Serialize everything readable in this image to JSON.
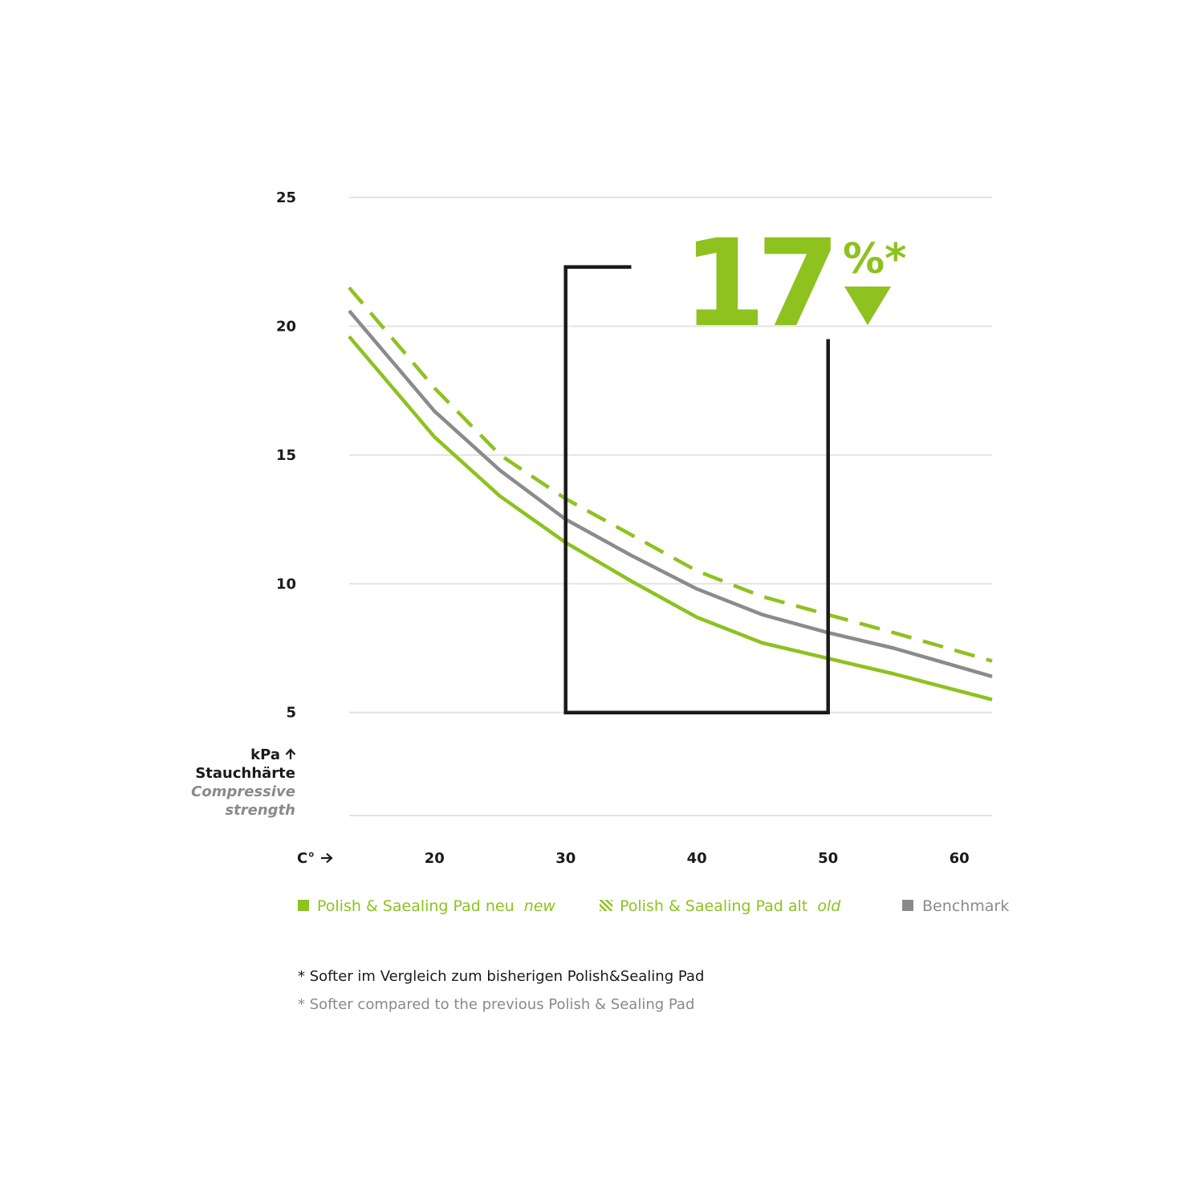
{
  "colors": {
    "green": "#8dc21f",
    "gray": "#8a8b8b",
    "black": "#1a1a1a",
    "grid": "#e3e3e3"
  },
  "chart_data": {
    "type": "line",
    "x_axis": {
      "label": "C°",
      "ticks": [
        20,
        30,
        40,
        50,
        60
      ],
      "range": [
        13.5,
        62.5
      ]
    },
    "y_axis": {
      "unit_label": "kPa",
      "label_de": "Stauchhärte",
      "label_en_line1": "Compressive",
      "label_en_line2": "strength",
      "ticks": [
        5,
        10,
        15,
        20,
        25
      ],
      "range": [
        1,
        25
      ]
    },
    "grid": true,
    "series": [
      {
        "name": "Polish & Saealing Pad neu",
        "name_suffix": "new",
        "style": "solid",
        "color": "#8dc21f",
        "x": [
          13.5,
          20,
          25,
          30,
          35,
          40,
          45,
          50,
          55,
          62.5
        ],
        "y": [
          19.6,
          15.7,
          13.4,
          11.6,
          10.1,
          8.7,
          7.7,
          7.1,
          6.5,
          5.5
        ]
      },
      {
        "name": "Polish & Saealing Pad alt",
        "name_suffix": "old",
        "style": "dashed",
        "color": "#8dc21f",
        "x": [
          13.5,
          20,
          25,
          30,
          35,
          40,
          45,
          50,
          55,
          62.5
        ],
        "y": [
          21.5,
          17.6,
          15.0,
          13.3,
          11.9,
          10.5,
          9.5,
          8.8,
          8.1,
          7.0
        ]
      },
      {
        "name": "Benchmark",
        "style": "solid",
        "color": "#8a8b8b",
        "x": [
          13.5,
          20,
          25,
          30,
          35,
          40,
          45,
          50,
          55,
          62.5
        ],
        "y": [
          20.6,
          16.7,
          14.4,
          12.5,
          11.1,
          9.8,
          8.8,
          8.1,
          7.5,
          6.4
        ]
      }
    ],
    "annotation": {
      "big_number": "17",
      "percent_text": "%*",
      "direction": "down",
      "bracket": {
        "x_start": 30,
        "x_end": 50,
        "y_bottom": 5,
        "y_top_left": 22.3,
        "y_top_right": 19.5,
        "x_top_left_end": 35
      }
    }
  },
  "legend": [
    {
      "label": "Polish & Saealing Pad neu",
      "suffix": "new",
      "swatch": "solid-square",
      "color": "#8dc21f"
    },
    {
      "label": "Polish & Saealing Pad alt",
      "suffix": "old",
      "swatch": "hatched-square",
      "color": "#8dc21f"
    },
    {
      "label": "Benchmark",
      "suffix": "",
      "swatch": "solid-square",
      "color": "#8a8b8b"
    }
  ],
  "footnotes": {
    "de": "* Softer im Vergleich zum bisherigen Polish&Sealing Pad",
    "en": "* Softer compared to the previous Polish & Sealing Pad"
  }
}
